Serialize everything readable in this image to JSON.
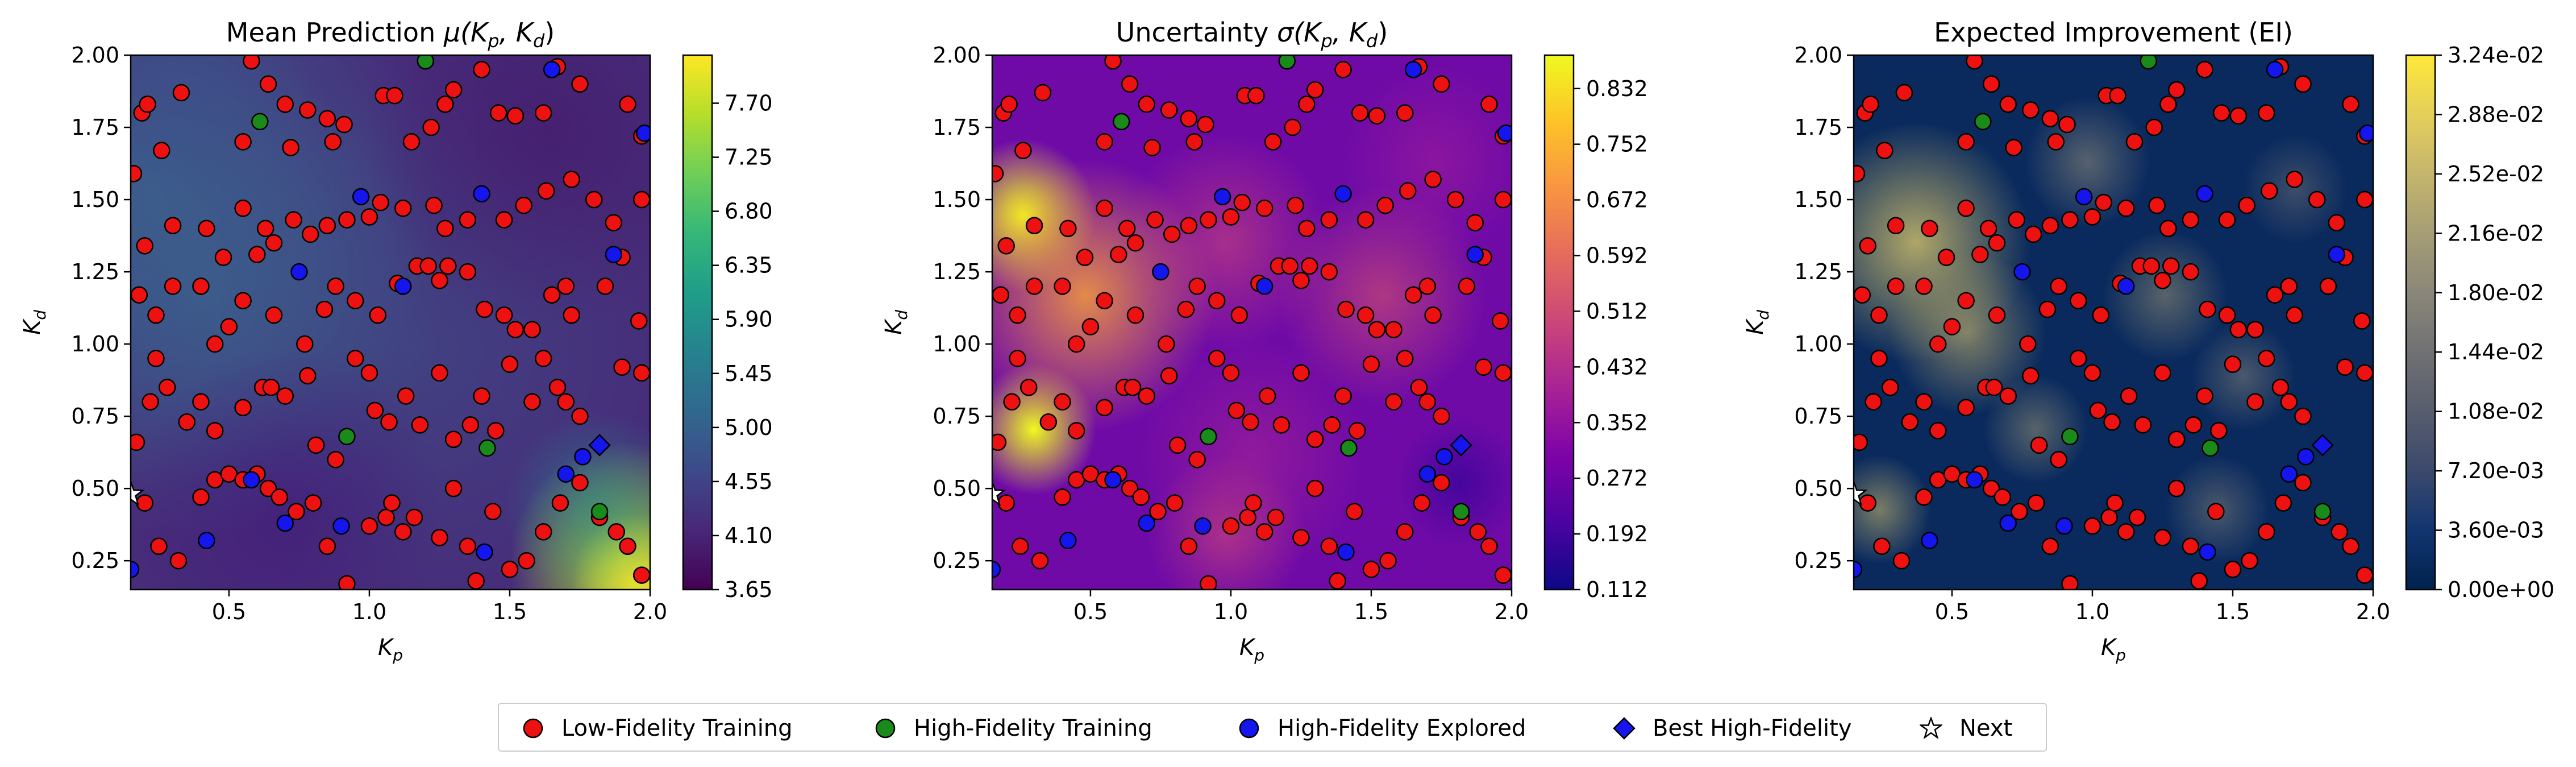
{
  "chart_data": [
    {
      "type": "heatmap",
      "title_main": "Mean Prediction ",
      "title_math": "μ(K",
      "title_sub1": "p",
      "title_mid": ", K",
      "title_sub2": "d",
      "title_end": ")",
      "xlabel": "K",
      "xlabel_sub": "p",
      "ylabel": "K",
      "ylabel_sub": "d",
      "xlim": [
        0.15,
        2.0
      ],
      "ylim": [
        0.15,
        2.0
      ],
      "xticks": [
        "0.5",
        "1.0",
        "1.5",
        "2.0"
      ],
      "yticks": [
        "0.25",
        "0.50",
        "0.75",
        "1.00",
        "1.25",
        "1.50",
        "1.75",
        "2.00"
      ],
      "colormap": "viridis",
      "colorbar_ticks": [
        "3.65",
        "4.10",
        "4.55",
        "5.00",
        "5.45",
        "5.90",
        "6.35",
        "6.80",
        "7.25",
        "7.70"
      ],
      "colorbar_range": [
        3.65,
        8.1
      ]
    },
    {
      "type": "heatmap",
      "title_main": "Uncertainty ",
      "title_math": "σ(K",
      "title_sub1": "p",
      "title_mid": ", K",
      "title_sub2": "d",
      "title_end": ")",
      "xlabel": "K",
      "xlabel_sub": "p",
      "ylabel": "K",
      "ylabel_sub": "d",
      "xlim": [
        0.15,
        2.0
      ],
      "ylim": [
        0.15,
        2.0
      ],
      "xticks": [
        "0.5",
        "1.0",
        "1.5",
        "2.0"
      ],
      "yticks": [
        "0.25",
        "0.50",
        "0.75",
        "1.00",
        "1.25",
        "1.50",
        "1.75",
        "2.00"
      ],
      "colormap": "plasma",
      "colorbar_ticks": [
        "0.112",
        "0.192",
        "0.272",
        "0.352",
        "0.432",
        "0.512",
        "0.592",
        "0.672",
        "0.752",
        "0.832"
      ],
      "colorbar_range": [
        0.112,
        0.88
      ]
    },
    {
      "type": "heatmap",
      "title_main": "Expected Improvement (EI)",
      "title_math": "",
      "title_sub1": "",
      "title_mid": "",
      "title_sub2": "",
      "title_end": "",
      "xlabel": "K",
      "xlabel_sub": "p",
      "ylabel": "K",
      "ylabel_sub": "d",
      "xlim": [
        0.15,
        2.0
      ],
      "ylim": [
        0.15,
        2.0
      ],
      "xticks": [
        "0.5",
        "1.0",
        "1.5",
        "2.0"
      ],
      "yticks": [
        "0.25",
        "0.50",
        "0.75",
        "1.00",
        "1.25",
        "1.50",
        "1.75",
        "2.00"
      ],
      "colormap": "cividis",
      "colorbar_ticks": [
        "0.00e+00",
        "3.60e-03",
        "7.20e-03",
        "1.08e-02",
        "1.44e-02",
        "1.80e-02",
        "2.16e-02",
        "2.52e-02",
        "2.88e-02",
        "3.24e-02"
      ],
      "colorbar_range": [
        0.0,
        0.0324
      ]
    }
  ],
  "points": {
    "low_fidelity": [
      [
        0.16,
        1.59
      ],
      [
        0.19,
        1.8
      ],
      [
        0.21,
        1.83
      ],
      [
        0.26,
        1.67
      ],
      [
        0.33,
        1.87
      ],
      [
        0.55,
        1.7
      ],
      [
        0.58,
        1.98
      ],
      [
        0.64,
        1.9
      ],
      [
        0.7,
        1.83
      ],
      [
        0.72,
        1.68
      ],
      [
        0.78,
        1.81
      ],
      [
        0.85,
        1.78
      ],
      [
        0.87,
        1.7
      ],
      [
        0.91,
        1.76
      ],
      [
        1.05,
        1.86
      ],
      [
        1.09,
        1.86
      ],
      [
        1.15,
        1.7
      ],
      [
        1.22,
        1.75
      ],
      [
        1.27,
        1.83
      ],
      [
        1.3,
        1.88
      ],
      [
        1.4,
        1.95
      ],
      [
        1.46,
        1.8
      ],
      [
        1.52,
        1.79
      ],
      [
        1.62,
        1.8
      ],
      [
        1.67,
        1.96
      ],
      [
        1.75,
        1.9
      ],
      [
        1.92,
        1.83
      ],
      [
        1.97,
        1.72
      ],
      [
        0.3,
        1.41
      ],
      [
        0.42,
        1.4
      ],
      [
        0.48,
        1.3
      ],
      [
        0.55,
        1.47
      ],
      [
        0.6,
        1.31
      ],
      [
        0.63,
        1.4
      ],
      [
        0.66,
        1.35
      ],
      [
        0.73,
        1.43
      ],
      [
        0.79,
        1.38
      ],
      [
        0.85,
        1.41
      ],
      [
        0.92,
        1.43
      ],
      [
        1.0,
        1.44
      ],
      [
        1.04,
        1.49
      ],
      [
        1.12,
        1.47
      ],
      [
        1.23,
        1.48
      ],
      [
        1.27,
        1.4
      ],
      [
        1.35,
        1.43
      ],
      [
        1.48,
        1.43
      ],
      [
        1.55,
        1.48
      ],
      [
        1.63,
        1.53
      ],
      [
        1.72,
        1.57
      ],
      [
        1.8,
        1.5
      ],
      [
        1.87,
        1.42
      ],
      [
        1.97,
        1.5
      ],
      [
        0.18,
        1.17
      ],
      [
        0.2,
        1.34
      ],
      [
        0.24,
        1.1
      ],
      [
        0.3,
        1.2
      ],
      [
        0.4,
        1.2
      ],
      [
        0.45,
        1.0
      ],
      [
        0.5,
        1.06
      ],
      [
        0.55,
        1.15
      ],
      [
        0.66,
        1.1
      ],
      [
        0.77,
        1.0
      ],
      [
        0.84,
        1.12
      ],
      [
        0.88,
        1.2
      ],
      [
        0.95,
        1.15
      ],
      [
        1.03,
        1.1
      ],
      [
        1.1,
        1.21
      ],
      [
        1.17,
        1.27
      ],
      [
        1.21,
        1.27
      ],
      [
        1.25,
        1.22
      ],
      [
        1.28,
        1.27
      ],
      [
        1.35,
        1.25
      ],
      [
        1.41,
        1.12
      ],
      [
        1.48,
        1.1
      ],
      [
        1.52,
        1.05
      ],
      [
        1.58,
        1.05
      ],
      [
        1.65,
        1.17
      ],
      [
        1.7,
        1.2
      ],
      [
        1.72,
        1.1
      ],
      [
        1.84,
        1.2
      ],
      [
        1.9,
        1.3
      ],
      [
        1.96,
        1.08
      ],
      [
        0.17,
        0.66
      ],
      [
        0.22,
        0.8
      ],
      [
        0.24,
        0.95
      ],
      [
        0.28,
        0.85
      ],
      [
        0.35,
        0.73
      ],
      [
        0.4,
        0.8
      ],
      [
        0.45,
        0.7
      ],
      [
        0.55,
        0.78
      ],
      [
        0.62,
        0.85
      ],
      [
        0.65,
        0.85
      ],
      [
        0.7,
        0.82
      ],
      [
        0.78,
        0.89
      ],
      [
        0.81,
        0.65
      ],
      [
        0.88,
        0.6
      ],
      [
        0.95,
        0.95
      ],
      [
        1.0,
        0.9
      ],
      [
        1.02,
        0.77
      ],
      [
        1.07,
        0.73
      ],
      [
        1.13,
        0.82
      ],
      [
        1.18,
        0.72
      ],
      [
        1.25,
        0.9
      ],
      [
        1.3,
        0.67
      ],
      [
        1.36,
        0.72
      ],
      [
        1.4,
        0.82
      ],
      [
        1.45,
        0.7
      ],
      [
        1.5,
        0.93
      ],
      [
        1.58,
        0.8
      ],
      [
        1.62,
        0.95
      ],
      [
        1.67,
        0.85
      ],
      [
        1.7,
        0.8
      ],
      [
        1.75,
        0.75
      ],
      [
        1.9,
        0.92
      ],
      [
        1.97,
        0.9
      ],
      [
        0.2,
        0.45
      ],
      [
        0.25,
        0.3
      ],
      [
        0.32,
        0.25
      ],
      [
        0.4,
        0.47
      ],
      [
        0.45,
        0.53
      ],
      [
        0.5,
        0.55
      ],
      [
        0.55,
        0.53
      ],
      [
        0.6,
        0.55
      ],
      [
        0.64,
        0.5
      ],
      [
        0.68,
        0.47
      ],
      [
        0.74,
        0.42
      ],
      [
        0.8,
        0.45
      ],
      [
        0.85,
        0.3
      ],
      [
        0.92,
        0.17
      ],
      [
        1.0,
        0.37
      ],
      [
        1.06,
        0.4
      ],
      [
        1.08,
        0.45
      ],
      [
        1.12,
        0.35
      ],
      [
        1.16,
        0.4
      ],
      [
        1.25,
        0.33
      ],
      [
        1.3,
        0.5
      ],
      [
        1.35,
        0.3
      ],
      [
        1.38,
        0.18
      ],
      [
        1.44,
        0.42
      ],
      [
        1.5,
        0.22
      ],
      [
        1.56,
        0.25
      ],
      [
        1.62,
        0.35
      ],
      [
        1.68,
        0.45
      ],
      [
        1.75,
        0.52
      ],
      [
        1.82,
        0.4
      ],
      [
        1.88,
        0.35
      ],
      [
        1.92,
        0.3
      ],
      [
        1.97,
        0.2
      ]
    ],
    "high_fidelity": [
      [
        0.61,
        1.77
      ],
      [
        1.2,
        1.98
      ],
      [
        0.92,
        0.68
      ],
      [
        1.42,
        0.64
      ],
      [
        1.82,
        0.42
      ]
    ],
    "explored": [
      [
        0.75,
        1.25
      ],
      [
        0.97,
        1.51
      ],
      [
        1.12,
        1.2
      ],
      [
        1.4,
        1.52
      ],
      [
        1.65,
        1.95
      ],
      [
        1.87,
        1.31
      ],
      [
        1.98,
        1.73
      ],
      [
        0.42,
        0.32
      ],
      [
        0.58,
        0.53
      ],
      [
        0.7,
        0.38
      ],
      [
        0.9,
        0.37
      ],
      [
        1.41,
        0.28
      ],
      [
        1.76,
        0.61
      ],
      [
        1.7,
        0.55
      ],
      [
        0.15,
        0.22
      ]
    ],
    "best": [
      [
        1.82,
        0.65
      ]
    ],
    "next": [
      [
        0.15,
        0.48
      ]
    ]
  },
  "colors": {
    "low_fidelity": "#ee1111",
    "high_fidelity": "#1a8a1a",
    "explored": "#1515ee",
    "best": "#1515ee",
    "next": "#ffffff"
  },
  "legend": [
    {
      "label": "Low-Fidelity Training",
      "marker": "circle",
      "color": "#ee1111"
    },
    {
      "label": "High-Fidelity Training",
      "marker": "circle",
      "color": "#1a8a1a"
    },
    {
      "label": "High-Fidelity Explored",
      "marker": "circle",
      "color": "#1515ee"
    },
    {
      "label": "Best High-Fidelity",
      "marker": "diamond",
      "color": "#1515ee"
    },
    {
      "label": "Next",
      "marker": "star",
      "color": "#ffffff"
    }
  ]
}
